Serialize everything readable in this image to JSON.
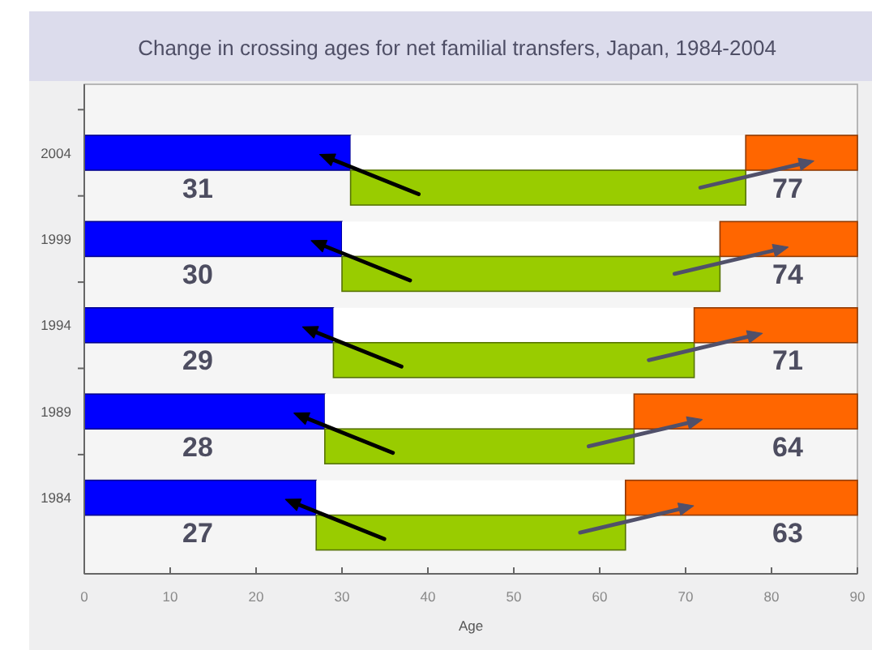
{
  "chart_data": {
    "type": "bar",
    "title": "Change in crossing ages for net familial transfers, Japan, 1984-2004",
    "xlabel": "Age",
    "orientation": "horizontal",
    "stacked": true,
    "categories": [
      "2004",
      null,
      "1999",
      null,
      "1994",
      null,
      "1989",
      null,
      "1984",
      null
    ],
    "series": [
      {
        "color": "#0000ff",
        "values": [
          31,
          null,
          30,
          null,
          29,
          null,
          28,
          null,
          27,
          null
        ],
        "value_labels": [
          "31",
          null,
          "30",
          null,
          "29",
          null,
          "28",
          null,
          "27",
          null
        ]
      },
      {
        "color": "#ffffff",
        "values": [
          46,
          null,
          44,
          null,
          42,
          null,
          36,
          null,
          36,
          null
        ]
      },
      {
        "color": "#99cc00",
        "base": [
          null,
          31,
          null,
          30,
          null,
          29,
          null,
          28,
          null,
          27
        ],
        "values": [
          null,
          46,
          null,
          44,
          null,
          42,
          null,
          36,
          null,
          36
        ]
      },
      {
        "color": "#ff6600",
        "values": [
          13,
          null,
          16,
          null,
          19,
          null,
          26,
          null,
          27,
          null
        ]
      }
    ],
    "annotations": [
      "77",
      "74",
      "71",
      "64",
      "63"
    ],
    "xlim": [
      0,
      90
    ],
    "xticks": [
      0,
      10,
      20,
      30,
      40,
      50,
      60,
      70,
      80,
      90
    ]
  }
}
